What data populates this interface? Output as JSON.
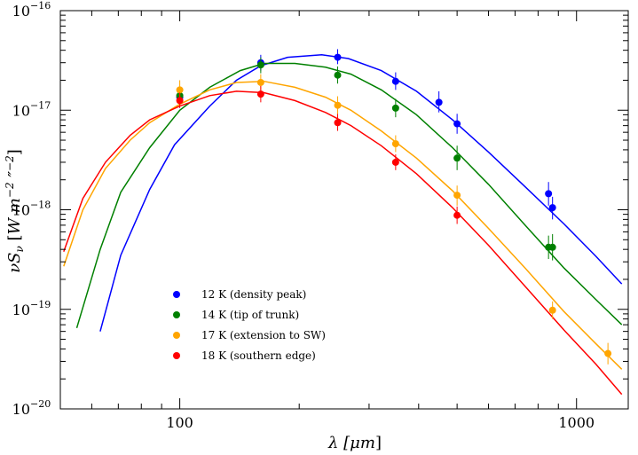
{
  "chart_data": {
    "type": "line",
    "x_scale": "log",
    "y_scale": "log",
    "xlim": [
      50,
      1350
    ],
    "ylim": [
      1e-20,
      1e-16
    ],
    "xlabel_main": "λ [",
    "xlabel_unit": "μm",
    "xlabel_end": "]",
    "ylabel": "νS_ν [W m^-2 ″^-2]",
    "ylabel_parts": {
      "nu": "ν",
      "S": "S",
      "nu_sub": "ν",
      "W": "W",
      "m": "m",
      "exp1": "−2",
      "arcsec": " ″",
      "exp2": "−2",
      "open": " [",
      "close": "]"
    },
    "x_ticks": [
      {
        "value": 100,
        "label": "100"
      },
      {
        "value": 1000,
        "label": "1000"
      }
    ],
    "y_ticks": [
      {
        "value": 1e-16,
        "base": "10",
        "exp": "−16"
      },
      {
        "value": 1e-17,
        "base": "10",
        "exp": "−17"
      },
      {
        "value": 1e-18,
        "base": "10",
        "exp": "−18"
      },
      {
        "value": 1e-19,
        "base": "10",
        "exp": "−19"
      },
      {
        "value": 1e-20,
        "base": "10",
        "exp": "−20"
      }
    ],
    "legend_position": "bottom-left",
    "series": [
      {
        "name": "12 K (density peak)",
        "color": "#0000ff",
        "model": [
          [
            63,
            6e-20
          ],
          [
            71,
            3.5e-19
          ],
          [
            84,
            1.6e-18
          ],
          [
            97,
            4.5e-18
          ],
          [
            119,
            1.1e-17
          ],
          [
            139,
            2e-17
          ],
          [
            160,
            2.8e-17
          ],
          [
            187,
            3.4e-17
          ],
          [
            228,
            3.6e-17
          ],
          [
            266,
            3.3e-17
          ],
          [
            322,
            2.5e-17
          ],
          [
            395,
            1.55e-17
          ],
          [
            487,
            8e-18
          ],
          [
            600,
            3.8e-18
          ],
          [
            742,
            1.7e-18
          ],
          [
            930,
            7.2e-19
          ],
          [
            1120,
            3.4e-19
          ],
          [
            1300,
            1.8e-19
          ]
        ],
        "points": [
          {
            "x": 100,
            "y": 1.35e-17,
            "lo": 1.15e-17,
            "hi": 1.55e-17
          },
          {
            "x": 160,
            "y": 3e-17,
            "lo": 2.5e-17,
            "hi": 3.6e-17
          },
          {
            "x": 250,
            "y": 3.4e-17,
            "lo": 2.9e-17,
            "hi": 4.1e-17
          },
          {
            "x": 350,
            "y": 1.95e-17,
            "lo": 1.6e-17,
            "hi": 2.4e-17
          },
          {
            "x": 450,
            "y": 1.2e-17,
            "lo": 9.5e-18,
            "hi": 1.55e-17
          },
          {
            "x": 500,
            "y": 7.3e-18,
            "lo": 5.8e-18,
            "hi": 9.2e-18
          },
          {
            "x": 850,
            "y": 1.45e-18,
            "lo": 1.1e-18,
            "hi": 1.9e-18
          },
          {
            "x": 870,
            "y": 1.05e-18,
            "lo": 8e-19,
            "hi": 1.35e-18
          }
        ]
      },
      {
        "name": "14 K (tip of trunk)",
        "color": "#008000",
        "model": [
          [
            55,
            6.5e-20
          ],
          [
            63,
            4e-19
          ],
          [
            71,
            1.5e-18
          ],
          [
            84,
            4.2e-18
          ],
          [
            100,
            1e-17
          ],
          [
            119,
            1.7e-17
          ],
          [
            142,
            2.5e-17
          ],
          [
            163,
            2.95e-17
          ],
          [
            195,
            2.95e-17
          ],
          [
            233,
            2.7e-17
          ],
          [
            270,
            2.3e-17
          ],
          [
            322,
            1.6e-17
          ],
          [
            395,
            9e-18
          ],
          [
            487,
            4.2e-18
          ],
          [
            600,
            1.8e-18
          ],
          [
            742,
            7e-19
          ],
          [
            930,
            2.6e-19
          ],
          [
            1120,
            1.25e-19
          ],
          [
            1300,
            7e-20
          ]
        ],
        "points": [
          {
            "x": 100,
            "y": 1.4e-17,
            "lo": 1.2e-17,
            "hi": 1.65e-17
          },
          {
            "x": 160,
            "y": 2.85e-17,
            "lo": 2.35e-17,
            "hi": 3.4e-17
          },
          {
            "x": 250,
            "y": 2.25e-17,
            "lo": 1.85e-17,
            "hi": 2.75e-17
          },
          {
            "x": 350,
            "y": 1.05e-17,
            "lo": 8.5e-18,
            "hi": 1.3e-17
          },
          {
            "x": 500,
            "y": 3.3e-18,
            "lo": 2.5e-18,
            "hi": 4.4e-18
          },
          {
            "x": 850,
            "y": 4.2e-19,
            "lo": 3.2e-19,
            "hi": 5.5e-19
          },
          {
            "x": 870,
            "y": 4.2e-19,
            "lo": 3.1e-19,
            "hi": 5.7e-19
          }
        ]
      },
      {
        "name": "17 K (extension to SW)",
        "color": "#ffa500",
        "model": [
          [
            51,
            2.7e-19
          ],
          [
            57,
            1e-18
          ],
          [
            65,
            2.6e-18
          ],
          [
            75,
            5e-18
          ],
          [
            84,
            7.5e-18
          ],
          [
            100,
            1.15e-17
          ],
          [
            119,
            1.6e-17
          ],
          [
            139,
            1.9e-17
          ],
          [
            163,
            1.95e-17
          ],
          [
            195,
            1.7e-17
          ],
          [
            233,
            1.35e-17
          ],
          [
            270,
            1e-17
          ],
          [
            322,
            6.2e-18
          ],
          [
            395,
            3.3e-18
          ],
          [
            487,
            1.55e-18
          ],
          [
            600,
            6.5e-19
          ],
          [
            742,
            2.6e-19
          ],
          [
            930,
            9.5e-20
          ],
          [
            1120,
            4.5e-20
          ],
          [
            1300,
            2.5e-20
          ]
        ],
        "points": [
          {
            "x": 100,
            "y": 1.6e-17,
            "lo": 1.3e-17,
            "hi": 2e-17
          },
          {
            "x": 160,
            "y": 1.9e-17,
            "lo": 1.55e-17,
            "hi": 2.3e-17
          },
          {
            "x": 250,
            "y": 1.12e-17,
            "lo": 9.2e-18,
            "hi": 1.38e-17
          },
          {
            "x": 350,
            "y": 4.6e-18,
            "lo": 3.8e-18,
            "hi": 5.6e-18
          },
          {
            "x": 500,
            "y": 1.4e-18,
            "lo": 1.1e-18,
            "hi": 1.75e-18
          },
          {
            "x": 870,
            "y": 9.8e-20,
            "lo": 8e-20,
            "hi": 1.2e-19
          },
          {
            "x": 1200,
            "y": 3.6e-20,
            "lo": 2.8e-20,
            "hi": 4.6e-20
          }
        ]
      },
      {
        "name": "18 K (southern edge)",
        "color": "#ff0000",
        "model": [
          [
            51,
            3.8e-19
          ],
          [
            57,
            1.3e-18
          ],
          [
            65,
            3e-18
          ],
          [
            75,
            5.6e-18
          ],
          [
            84,
            8e-18
          ],
          [
            100,
            1.1e-17
          ],
          [
            119,
            1.4e-17
          ],
          [
            139,
            1.55e-17
          ],
          [
            163,
            1.5e-17
          ],
          [
            195,
            1.25e-17
          ],
          [
            233,
            9.5e-18
          ],
          [
            270,
            7e-18
          ],
          [
            322,
            4.4e-18
          ],
          [
            395,
            2.3e-18
          ],
          [
            487,
            1.05e-18
          ],
          [
            600,
            4.4e-19
          ],
          [
            742,
            1.7e-19
          ],
          [
            930,
            6.2e-20
          ],
          [
            1120,
            2.8e-20
          ],
          [
            1300,
            1.4e-20
          ]
        ],
        "points": [
          {
            "x": 100,
            "y": 1.25e-17,
            "lo": 1.05e-17,
            "hi": 1.5e-17
          },
          {
            "x": 160,
            "y": 1.45e-17,
            "lo": 1.2e-17,
            "hi": 1.75e-17
          },
          {
            "x": 250,
            "y": 7.5e-18,
            "lo": 6.2e-18,
            "hi": 9.2e-18
          },
          {
            "x": 350,
            "y": 3e-18,
            "lo": 2.5e-18,
            "hi": 3.6e-18
          },
          {
            "x": 500,
            "y": 8.8e-19,
            "lo": 7.2e-19,
            "hi": 1.08e-18
          }
        ]
      }
    ]
  }
}
